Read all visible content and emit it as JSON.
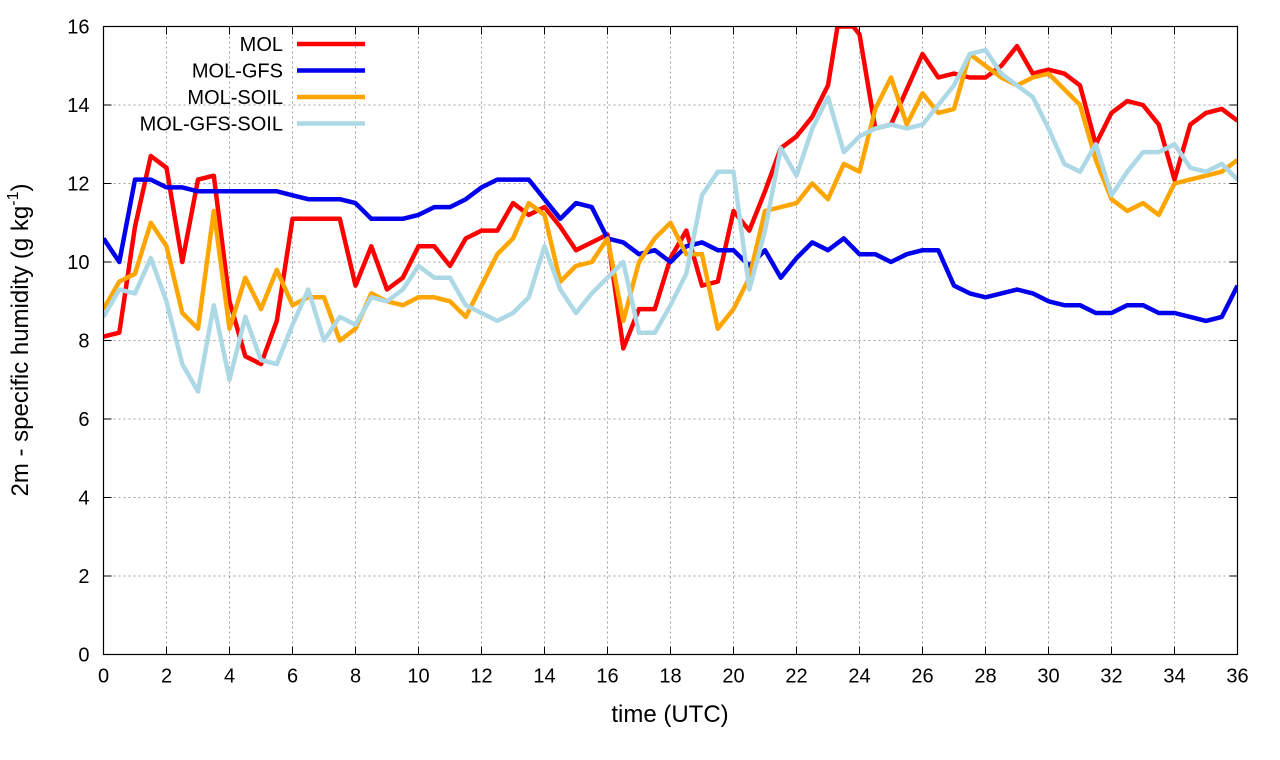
{
  "chart_data": {
    "type": "line",
    "title": "",
    "xlabel": "time (UTC)",
    "ylabel_main": "2m - specific humidity (g kg",
    "ylabel_sup": "-1",
    "ylabel_end": ")",
    "xlim": [
      0,
      36
    ],
    "ylim": [
      0,
      16
    ],
    "xticks": [
      0,
      2,
      4,
      6,
      8,
      10,
      12,
      14,
      16,
      18,
      20,
      22,
      24,
      26,
      28,
      30,
      32,
      34,
      36
    ],
    "yticks": [
      0,
      2,
      4,
      6,
      8,
      10,
      12,
      14,
      16
    ],
    "grid": true,
    "legend_position": "top-left",
    "series": [
      {
        "name": "MOL",
        "color": "#ff0000",
        "x": [
          0,
          0.5,
          1,
          1.5,
          2,
          2.5,
          3,
          3.5,
          4,
          4.5,
          5,
          5.5,
          6,
          6.5,
          7,
          7.5,
          8,
          8.5,
          9,
          9.5,
          10,
          10.5,
          11,
          11.5,
          12,
          12.5,
          13,
          13.5,
          14,
          14.5,
          15,
          15.5,
          16,
          16.5,
          17,
          17.5,
          18,
          18.5,
          19,
          19.5,
          20,
          20.5,
          21,
          21.5,
          22,
          22.5,
          23,
          23.3,
          23.8,
          24,
          24.5,
          25,
          25.5,
          26,
          26.5,
          27,
          27.5,
          28,
          28.5,
          29,
          29.5,
          30,
          30.5,
          31,
          31.5,
          32,
          32.5,
          33,
          33.5,
          34,
          34.5,
          35,
          35.5,
          36
        ],
        "values": [
          8.1,
          8.2,
          10.9,
          12.7,
          12.4,
          10.0,
          12.1,
          12.2,
          9.0,
          7.6,
          7.4,
          8.5,
          11.1,
          11.1,
          11.1,
          11.1,
          9.4,
          10.4,
          9.3,
          9.6,
          10.4,
          10.4,
          9.9,
          10.6,
          10.8,
          10.8,
          11.5,
          11.2,
          11.4,
          10.9,
          10.3,
          10.5,
          10.7,
          7.8,
          8.8,
          8.8,
          10.1,
          10.8,
          9.4,
          9.5,
          11.3,
          10.8,
          11.8,
          12.9,
          13.2,
          13.7,
          14.5,
          16.0,
          16.0,
          15.8,
          13.4,
          13.5,
          14.4,
          15.3,
          14.7,
          14.8,
          14.7,
          14.7,
          15.0,
          15.5,
          14.8,
          14.9,
          14.8,
          14.5,
          13.0,
          13.8,
          14.1,
          14.0,
          13.5,
          12.1,
          13.5,
          13.8,
          13.9,
          13.6
        ]
      },
      {
        "name": "MOL-GFS",
        "color": "#0000ee",
        "x": [
          0,
          0.5,
          1,
          1.5,
          2,
          2.5,
          3,
          3.5,
          4,
          4.5,
          5,
          5.5,
          6,
          6.5,
          7,
          7.5,
          8,
          8.5,
          9,
          9.5,
          10,
          10.5,
          11,
          11.5,
          12,
          12.5,
          13,
          13.5,
          14,
          14.5,
          15,
          15.5,
          16,
          16.5,
          17,
          17.5,
          18,
          18.5,
          19,
          19.5,
          20,
          20.5,
          21,
          21.5,
          22,
          22.5,
          23,
          23.5,
          24,
          24.5,
          25,
          25.5,
          26,
          26.5,
          27,
          27.5,
          28,
          28.5,
          29,
          29.5,
          30,
          30.5,
          31,
          31.5,
          32,
          32.5,
          33,
          33.5,
          34,
          34.5,
          35,
          35.5,
          36
        ],
        "values": [
          10.6,
          10.0,
          12.1,
          12.1,
          11.9,
          11.9,
          11.8,
          11.8,
          11.8,
          11.8,
          11.8,
          11.8,
          11.7,
          11.6,
          11.6,
          11.6,
          11.5,
          11.1,
          11.1,
          11.1,
          11.2,
          11.4,
          11.4,
          11.6,
          11.9,
          12.1,
          12.1,
          12.1,
          11.6,
          11.1,
          11.5,
          11.4,
          10.6,
          10.5,
          10.2,
          10.3,
          10.0,
          10.4,
          10.5,
          10.3,
          10.3,
          9.9,
          10.3,
          9.6,
          10.1,
          10.5,
          10.3,
          10.6,
          10.2,
          10.2,
          10.0,
          10.2,
          10.3,
          10.3,
          9.4,
          9.2,
          9.1,
          9.2,
          9.3,
          9.2,
          9.0,
          8.9,
          8.9,
          8.7,
          8.7,
          8.9,
          8.9,
          8.7,
          8.7,
          8.6,
          8.5,
          8.6,
          9.4
        ]
      },
      {
        "name": "MOL-SOIL",
        "color": "#ffa500",
        "x": [
          0,
          0.5,
          1,
          1.5,
          2,
          2.5,
          3,
          3.5,
          4,
          4.5,
          5,
          5.5,
          6,
          6.5,
          7,
          7.5,
          8,
          8.5,
          9,
          9.5,
          10,
          10.5,
          11,
          11.5,
          12,
          12.5,
          13,
          13.5,
          14,
          14.5,
          15,
          15.5,
          16,
          16.5,
          17,
          17.5,
          18,
          18.5,
          19,
          19.5,
          20,
          20.5,
          21,
          21.5,
          22,
          22.5,
          23,
          23.5,
          24,
          24.5,
          25,
          25.5,
          26,
          26.5,
          27,
          27.5,
          28,
          28.5,
          29,
          29.5,
          30,
          30.5,
          31,
          31.5,
          32,
          32.5,
          33,
          33.5,
          34,
          34.5,
          35,
          35.5,
          36
        ],
        "values": [
          8.8,
          9.5,
          9.7,
          11.0,
          10.4,
          8.7,
          8.3,
          11.3,
          8.3,
          9.6,
          8.8,
          9.8,
          8.9,
          9.1,
          9.1,
          8.0,
          8.3,
          9.2,
          9.0,
          8.9,
          9.1,
          9.1,
          9.0,
          8.6,
          9.4,
          10.2,
          10.6,
          11.5,
          11.2,
          9.5,
          9.9,
          10.0,
          10.6,
          8.5,
          10.0,
          10.6,
          11.0,
          10.2,
          10.2,
          8.3,
          8.8,
          9.6,
          11.3,
          11.4,
          11.5,
          12.0,
          11.6,
          12.5,
          12.3,
          13.9,
          14.7,
          13.5,
          14.3,
          13.8,
          13.9,
          15.3,
          15.0,
          14.7,
          14.5,
          14.7,
          14.8,
          14.4,
          14.0,
          12.6,
          11.6,
          11.3,
          11.5,
          11.2,
          12.0,
          12.1,
          12.2,
          12.3,
          12.6
        ]
      },
      {
        "name": "MOL-GFS-SOIL",
        "color": "#add8e6",
        "x": [
          0,
          0.5,
          1,
          1.5,
          2,
          2.5,
          3,
          3.5,
          4,
          4.5,
          5,
          5.5,
          6,
          6.5,
          7,
          7.5,
          8,
          8.5,
          9,
          9.5,
          10,
          10.5,
          11,
          11.5,
          12,
          12.5,
          13,
          13.5,
          14,
          14.5,
          15,
          15.5,
          16,
          16.5,
          17,
          17.5,
          18,
          18.5,
          19,
          19.5,
          20,
          20.5,
          21,
          21.5,
          22,
          22.5,
          23,
          23.5,
          24,
          24.5,
          25,
          25.5,
          26,
          26.5,
          27,
          27.5,
          28,
          28.5,
          29,
          29.5,
          30,
          30.5,
          31,
          31.5,
          32,
          32.5,
          33,
          33.5,
          34,
          34.5,
          35,
          35.5,
          36
        ],
        "values": [
          8.6,
          9.3,
          9.2,
          10.1,
          9.0,
          7.4,
          6.7,
          8.9,
          7.0,
          8.6,
          7.5,
          7.4,
          8.4,
          9.3,
          8.0,
          8.6,
          8.4,
          9.1,
          9.0,
          9.3,
          9.9,
          9.6,
          9.6,
          8.9,
          8.7,
          8.5,
          8.7,
          9.1,
          10.4,
          9.3,
          8.7,
          9.2,
          9.6,
          10.0,
          8.2,
          8.2,
          8.9,
          9.7,
          11.7,
          12.3,
          12.3,
          9.3,
          10.8,
          12.9,
          12.2,
          13.4,
          14.2,
          12.8,
          13.2,
          13.4,
          13.5,
          13.4,
          13.5,
          14.0,
          14.5,
          15.3,
          15.4,
          14.8,
          14.5,
          14.2,
          13.4,
          12.5,
          12.3,
          13.0,
          11.7,
          12.3,
          12.8,
          12.8,
          13.0,
          12.4,
          12.3,
          12.5,
          12.1
        ]
      }
    ]
  }
}
